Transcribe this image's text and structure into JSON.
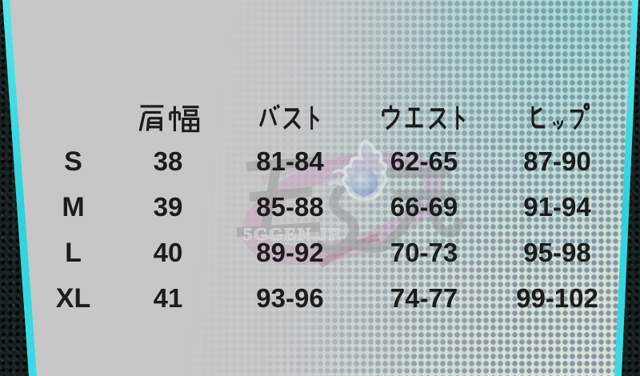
{
  "frame": {
    "accent_cyan": "#31d4de",
    "panel_gray": "#c7c7c7",
    "halftone_teal": "#a6dbda",
    "halftone_dot_gray": "#8d93a0",
    "border_black": "#101818"
  },
  "watermark": {
    "site_text": "5GGEN.JP",
    "flame_icon": "blue-spirit-flame",
    "swoosh_pink": "#cd86b6",
    "brush_gray": "#909090",
    "flame_blue": "#6e8ed6"
  },
  "chart_data": {
    "type": "table",
    "title": "",
    "columns": [
      "",
      "肩幅",
      "バスト",
      "ウエスト",
      "ヒップ"
    ],
    "rows": [
      [
        "S",
        "38",
        "81-84",
        "62-65",
        "87-90"
      ],
      [
        "M",
        "39",
        "85-88",
        "66-69",
        "91-94"
      ],
      [
        "L",
        "40",
        "89-92",
        "70-73",
        "95-98"
      ],
      [
        "XL",
        "41",
        "93-96",
        "74-77",
        "99-102"
      ]
    ]
  }
}
